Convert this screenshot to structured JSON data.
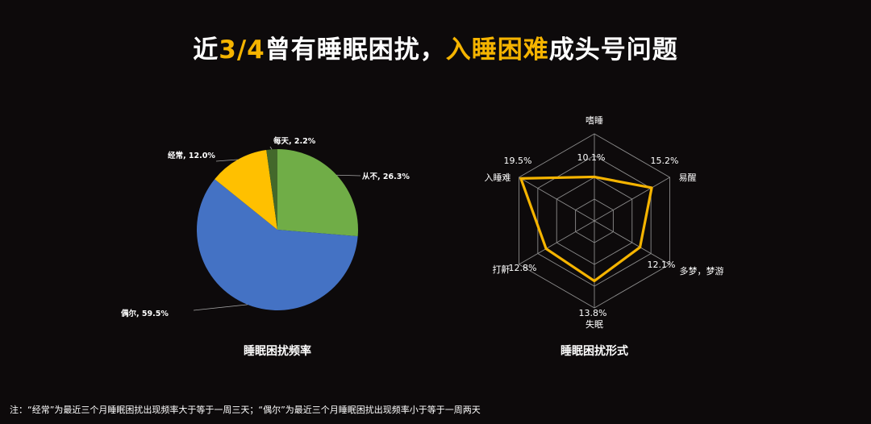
{
  "title": {
    "part1": "近",
    "part2": "3/4",
    "part3": "曾有睡眠困扰，",
    "part4": "入睡困难",
    "part5": "成头号问题",
    "highlight_color": "#f5b400"
  },
  "footnote": "注：“经常”为最近三个月睡眠困扰出现频率大于等于一周三天；“偶尔”为最近三个月睡眠困扰出现频率小于等于一周两天",
  "chart_data": [
    {
      "type": "pie",
      "caption": "睡眠困扰频率",
      "slices": [
        {
          "label": "从不",
          "value": 26.3,
          "text": "从不, 26.3%",
          "color": "#70ad47"
        },
        {
          "label": "偶尔",
          "value": 59.5,
          "text": "偶尔, 59.5%",
          "color": "#4472c4"
        },
        {
          "label": "经常",
          "value": 12.0,
          "text": "经常, 12.0%",
          "color": "#ffc000"
        },
        {
          "label": "每天",
          "value": 2.2,
          "text": "每天, 2.2%",
          "color": "#43682b"
        }
      ]
    },
    {
      "type": "radar",
      "caption": "睡眠困扰形式",
      "axes": [
        "嗜睡",
        "易醒",
        "多梦，梦游",
        "失眠",
        "打鼾",
        "入睡难"
      ],
      "values": [
        10.1,
        15.2,
        12.1,
        13.8,
        12.8,
        19.5
      ],
      "value_labels": [
        "10.1%",
        "15.2%",
        "12.1%",
        "13.8%",
        "12.8%",
        "19.5%"
      ],
      "rmax": 20,
      "gridlines": 4,
      "line_color": "#f5b400"
    }
  ]
}
